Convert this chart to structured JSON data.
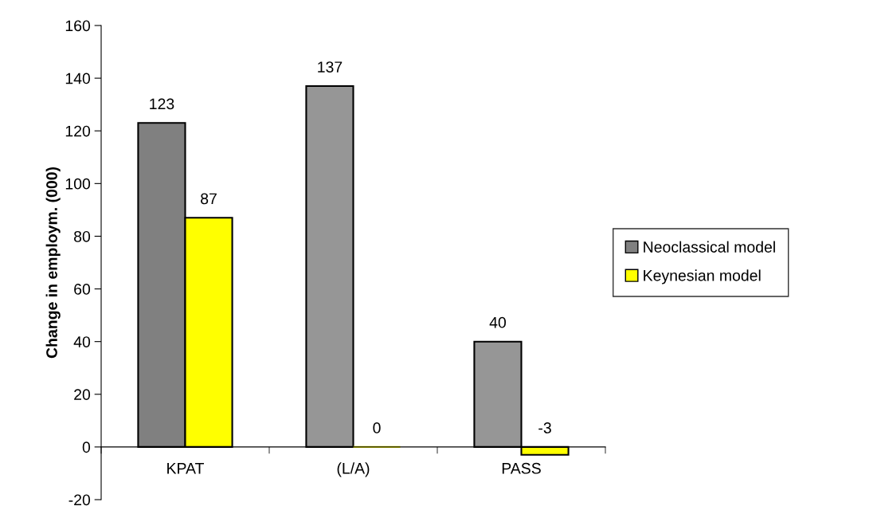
{
  "chart_data": {
    "type": "bar",
    "ylabel": "Change in employm. (000)",
    "categories": [
      "KPAT",
      "(L/A)",
      "PASS"
    ],
    "series": [
      {
        "name": "Neoclassical model",
        "color": "#808080",
        "colors": [
          "#808080",
          "#969696",
          "#969696"
        ],
        "values": [
          123,
          137,
          40
        ]
      },
      {
        "name": "Keynesian model",
        "color": "#ffff00",
        "values": [
          87,
          0,
          -3
        ]
      }
    ],
    "ylim": [
      -20,
      160
    ],
    "yticks": [
      -20,
      0,
      20,
      40,
      60,
      80,
      100,
      120,
      140,
      160
    ],
    "data_labels": true,
    "legend": "right",
    "grid": false
  }
}
